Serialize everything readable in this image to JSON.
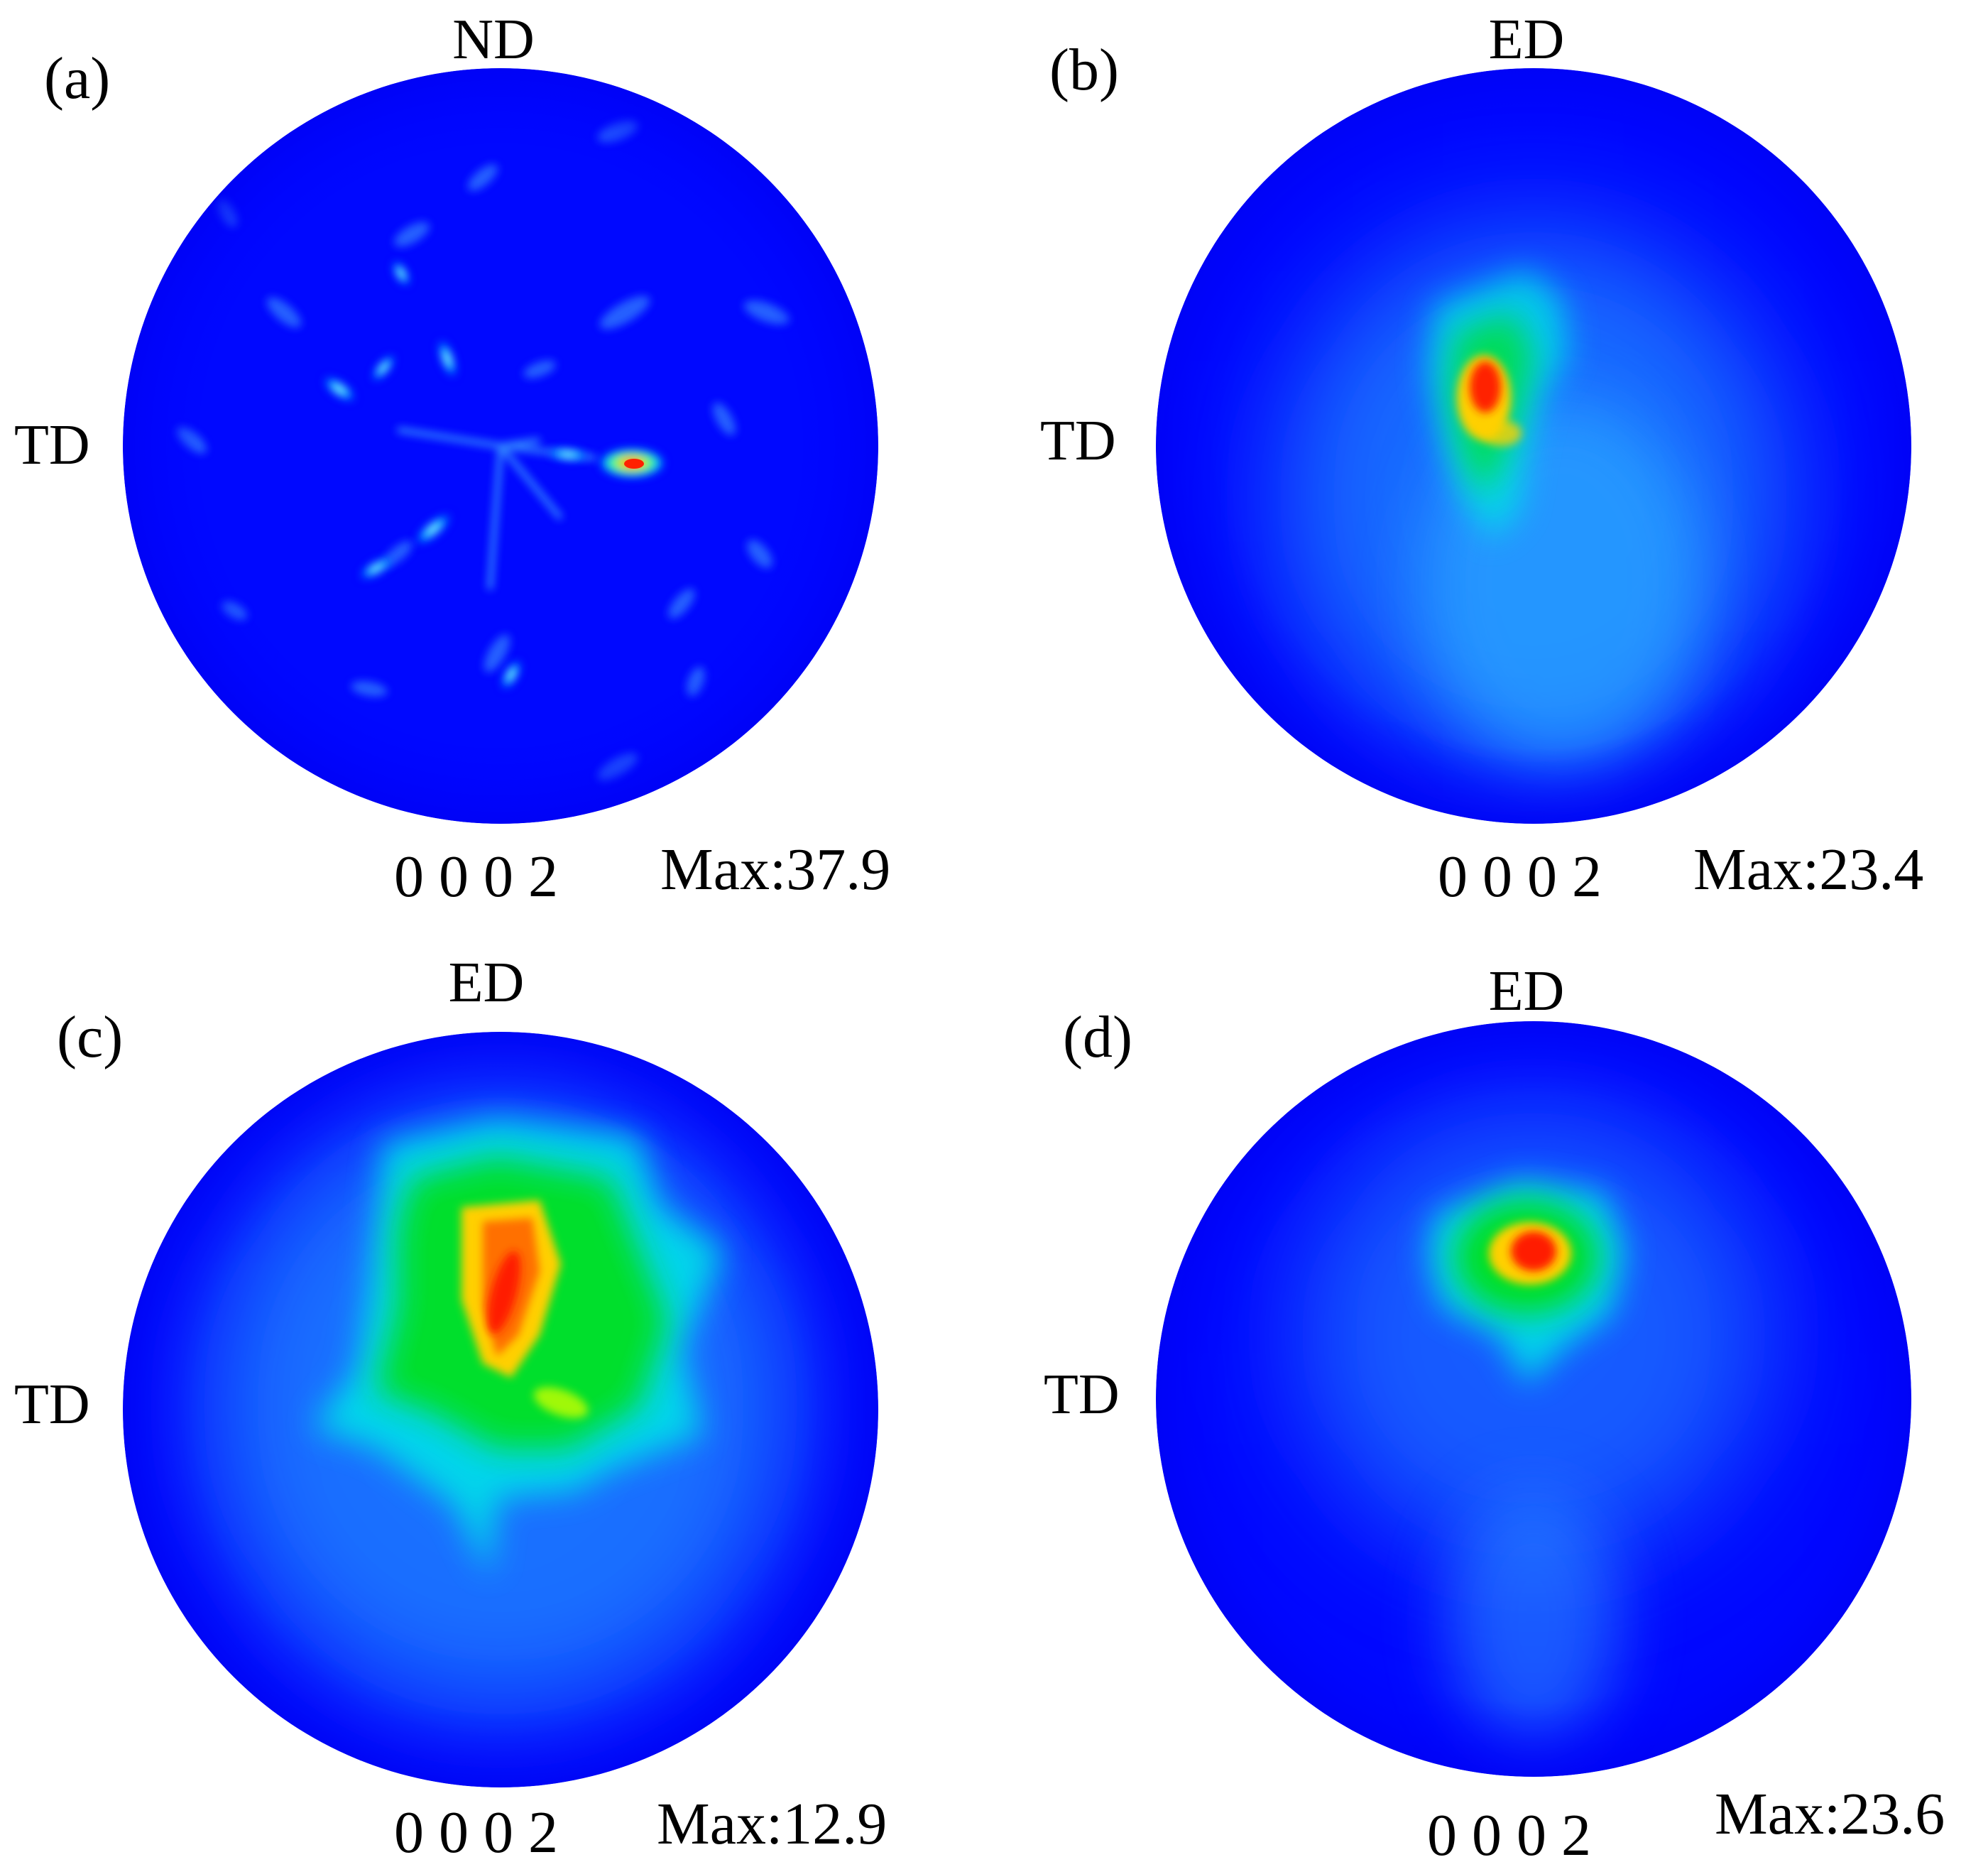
{
  "panels": [
    {
      "letter": "(a)",
      "top_axis": "ND",
      "left_axis": "TD",
      "plane": "0 0 0 2",
      "max_label": "Max:37.9",
      "max_value": 37.9
    },
    {
      "letter": "(b)",
      "top_axis": "ED",
      "left_axis": "TD",
      "plane": "0 0 0 2",
      "max_label": "Max:23.4",
      "max_value": 23.4
    },
    {
      "letter": "(c)",
      "top_axis": "ED",
      "left_axis": "TD",
      "plane": "0 0 0 2",
      "max_label": "Max:12.9",
      "max_value": 12.9
    },
    {
      "letter": "(d)",
      "top_axis": "ED",
      "left_axis": "TD",
      "plane": "0 0 0 2",
      "max_label": "Max:23.6",
      "max_value": 23.6
    }
  ],
  "colormap": {
    "background": "#0000ff",
    "low": "#0050ff",
    "cyan": "#00e6ff",
    "green": "#00e600",
    "yellow": "#ffe600",
    "orange": "#ff8c00",
    "red": "#ff0000"
  }
}
